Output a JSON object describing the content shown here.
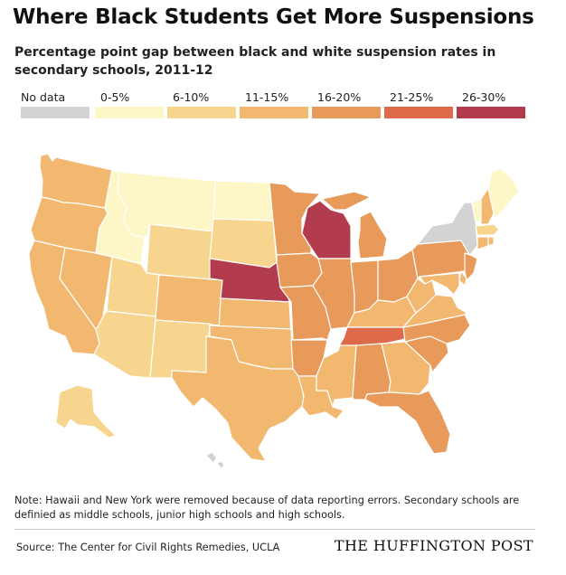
{
  "title": "Where Black Students Get More Suspensions",
  "subtitle": "Percentage point gap between black and white suspension rates in secondary schools, 2011-12",
  "legend": [
    {
      "label": "No data",
      "color": "#d3d3d3"
    },
    {
      "label": "0-5%",
      "color": "#fdf7c7"
    },
    {
      "label": "6-10%",
      "color": "#f8d58e"
    },
    {
      "label": "11-15%",
      "color": "#f2b86f"
    },
    {
      "label": "16-20%",
      "color": "#e89a5a"
    },
    {
      "label": "21-25%",
      "color": "#dd6a4b"
    },
    {
      "label": "26-30%",
      "color": "#b23b4e"
    }
  ],
  "states": [
    {
      "name": "Washington",
      "bucket": "11-15%"
    },
    {
      "name": "Oregon",
      "bucket": "11-15%"
    },
    {
      "name": "California",
      "bucket": "11-15%"
    },
    {
      "name": "Nevada",
      "bucket": "11-15%"
    },
    {
      "name": "Idaho",
      "bucket": "0-5%"
    },
    {
      "name": "Montana",
      "bucket": "0-5%"
    },
    {
      "name": "Wyoming",
      "bucket": "6-10%"
    },
    {
      "name": "Utah",
      "bucket": "6-10%"
    },
    {
      "name": "Arizona",
      "bucket": "6-10%"
    },
    {
      "name": "Colorado",
      "bucket": "11-15%"
    },
    {
      "name": "New Mexico",
      "bucket": "6-10%"
    },
    {
      "name": "North Dakota",
      "bucket": "0-5%"
    },
    {
      "name": "South Dakota",
      "bucket": "6-10%"
    },
    {
      "name": "Nebraska",
      "bucket": "26-30%"
    },
    {
      "name": "Kansas",
      "bucket": "11-15%"
    },
    {
      "name": "Oklahoma",
      "bucket": "11-15%"
    },
    {
      "name": "Texas",
      "bucket": "11-15%"
    },
    {
      "name": "Minnesota",
      "bucket": "16-20%"
    },
    {
      "name": "Iowa",
      "bucket": "16-20%"
    },
    {
      "name": "Missouri",
      "bucket": "16-20%"
    },
    {
      "name": "Arkansas",
      "bucket": "16-20%"
    },
    {
      "name": "Louisiana",
      "bucket": "11-15%"
    },
    {
      "name": "Wisconsin",
      "bucket": "26-30%"
    },
    {
      "name": "Illinois",
      "bucket": "16-20%"
    },
    {
      "name": "Michigan",
      "bucket": "16-20%"
    },
    {
      "name": "Indiana",
      "bucket": "16-20%"
    },
    {
      "name": "Ohio",
      "bucket": "16-20%"
    },
    {
      "name": "Kentucky",
      "bucket": "11-15%"
    },
    {
      "name": "Tennessee",
      "bucket": "21-25%"
    },
    {
      "name": "Mississippi",
      "bucket": "11-15%"
    },
    {
      "name": "Alabama",
      "bucket": "16-20%"
    },
    {
      "name": "Georgia",
      "bucket": "11-15%"
    },
    {
      "name": "Florida",
      "bucket": "16-20%"
    },
    {
      "name": "South Carolina",
      "bucket": "16-20%"
    },
    {
      "name": "North Carolina",
      "bucket": "16-20%"
    },
    {
      "name": "Virginia",
      "bucket": "11-15%"
    },
    {
      "name": "West Virginia",
      "bucket": "11-15%"
    },
    {
      "name": "Pennsylvania",
      "bucket": "16-20%"
    },
    {
      "name": "New York",
      "bucket": "No data"
    },
    {
      "name": "New Jersey",
      "bucket": "16-20%"
    },
    {
      "name": "Delaware",
      "bucket": "11-15%"
    },
    {
      "name": "Maryland",
      "bucket": "11-15%"
    },
    {
      "name": "Vermont",
      "bucket": "0-5%"
    },
    {
      "name": "New Hampshire",
      "bucket": "11-15%"
    },
    {
      "name": "Maine",
      "bucket": "0-5%"
    },
    {
      "name": "Massachusetts",
      "bucket": "6-10%"
    },
    {
      "name": "Connecticut",
      "bucket": "11-15%"
    },
    {
      "name": "Rhode Island",
      "bucket": "11-15%"
    },
    {
      "name": "Alaska",
      "bucket": "6-10%"
    },
    {
      "name": "Hawaii",
      "bucket": "No data"
    }
  ],
  "note": "Note: Hawaii and New York were removed because of data reporting errors. Secondary schools are definied as middle schools, junior high schools and high schools.",
  "source": "Source: The Center for Civil Rights Remedies, UCLA",
  "brand": "THE HUFFINGTON POST"
}
